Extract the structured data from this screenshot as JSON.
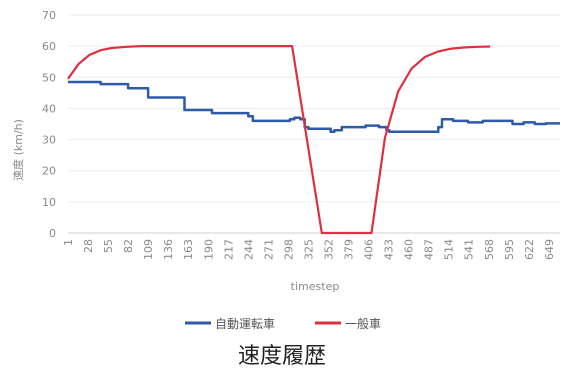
{
  "caption": "速度履歴",
  "chart_data": {
    "type": "line",
    "title": "",
    "xlabel": "timestep",
    "ylabel": "速度 (km/h)",
    "ylim": [
      0,
      70
    ],
    "xlim": [
      1,
      664
    ],
    "y_ticks": [
      0,
      10,
      20,
      30,
      40,
      50,
      60,
      70
    ],
    "x_ticks": [
      1,
      28,
      55,
      82,
      109,
      136,
      163,
      190,
      217,
      244,
      271,
      298,
      325,
      352,
      379,
      406,
      433,
      460,
      487,
      514,
      541,
      568,
      595,
      622,
      649
    ],
    "grid": "horizontal",
    "legend": "bottom",
    "series": [
      {
        "name": "自動運転車",
        "color": "#2e5aa8",
        "x": [
          1,
          45,
          45,
          82,
          82,
          109,
          109,
          136,
          136,
          158,
          158,
          195,
          195,
          244,
          244,
          250,
          250,
          300,
          300,
          306,
          306,
          314,
          314,
          320,
          320,
          325,
          325,
          330,
          330,
          355,
          355,
          360,
          360,
          370,
          370,
          402,
          402,
          420,
          420,
          430,
          430,
          434,
          434,
          500,
          500,
          505,
          505,
          520,
          520,
          540,
          540,
          560,
          560,
          580,
          580,
          600,
          600,
          615,
          615,
          630,
          630,
          645,
          645,
          664
        ],
        "y": [
          48.5,
          48.5,
          47.8,
          47.8,
          46.5,
          46.5,
          43.5,
          43.5,
          43.5,
          43.5,
          39.5,
          39.5,
          38.5,
          38.5,
          37.5,
          37.5,
          36,
          36,
          36.5,
          36.5,
          37,
          37,
          36.5,
          36.5,
          34,
          34,
          33.5,
          33.5,
          33.5,
          33.5,
          32.5,
          32.5,
          33,
          33,
          34,
          34,
          34.5,
          34.5,
          34,
          34,
          33,
          33,
          32.5,
          32.5,
          34,
          34,
          36.5,
          36.5,
          36,
          36,
          35.5,
          35.5,
          36,
          36,
          36,
          36,
          35,
          35,
          35.5,
          35.5,
          35,
          35,
          35.2,
          35.2
        ]
      },
      {
        "name": "一般車",
        "color": "#e03040",
        "x": [
          1,
          15,
          30,
          45,
          60,
          80,
          100,
          130,
          160,
          200,
          250,
          290,
          303,
          343,
          343,
          410,
          410,
          428,
          446,
          464,
          482,
          500,
          518,
          536,
          554,
          570
        ],
        "y": [
          49.5,
          54.2,
          57.2,
          58.7,
          59.4,
          59.8,
          60,
          60,
          60,
          60,
          60,
          60,
          60,
          0,
          0,
          0,
          0,
          30.5,
          45.5,
          52.8,
          56.5,
          58.3,
          59.2,
          59.6,
          59.8,
          59.9
        ]
      }
    ]
  }
}
